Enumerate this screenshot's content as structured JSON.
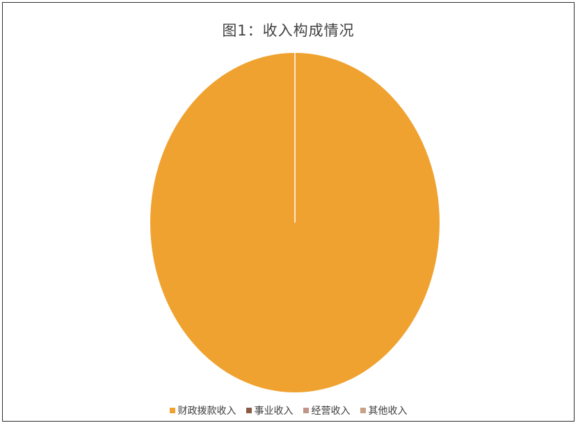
{
  "chart_data": {
    "type": "pie",
    "title": "图1：收入构成情况",
    "categories": [
      "财政拨款收入",
      "事业收入",
      "经营收入",
      "其他收入"
    ],
    "values": [
      100,
      0,
      0,
      0
    ],
    "colors": [
      "#EFA22F",
      "#8B5A44",
      "#C09487",
      "#C9A084"
    ],
    "legend_position": "bottom"
  }
}
